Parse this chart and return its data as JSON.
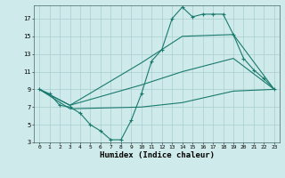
{
  "xlabel": "Humidex (Indice chaleur)",
  "bg_color": "#ceeaea",
  "grid_color": "#aacece",
  "line_color": "#1a7a6e",
  "xlim": [
    -0.5,
    23.5
  ],
  "ylim": [
    3,
    18.5
  ],
  "xticks": [
    0,
    1,
    2,
    3,
    4,
    5,
    6,
    7,
    8,
    9,
    10,
    11,
    12,
    13,
    14,
    15,
    16,
    17,
    18,
    19,
    20,
    21,
    22,
    23
  ],
  "yticks": [
    3,
    5,
    7,
    9,
    11,
    13,
    15,
    17
  ],
  "line1_x": [
    0,
    1,
    2,
    3,
    4,
    5,
    6,
    7,
    8,
    9,
    10,
    11,
    12,
    13,
    14,
    15,
    16,
    17,
    18,
    19,
    20,
    21,
    22,
    23
  ],
  "line1_y": [
    9.0,
    8.5,
    7.2,
    7.0,
    6.3,
    5.0,
    4.3,
    3.3,
    3.3,
    5.5,
    8.5,
    12.2,
    13.5,
    17.0,
    18.3,
    17.2,
    17.5,
    17.5,
    17.5,
    15.2,
    12.5,
    11.2,
    10.2,
    9.0
  ],
  "line2_x": [
    0,
    3,
    10,
    14,
    19,
    23
  ],
  "line2_y": [
    9.0,
    7.2,
    12.0,
    15.0,
    15.2,
    9.0
  ],
  "line3_x": [
    0,
    3,
    10,
    14,
    19,
    23
  ],
  "line3_y": [
    9.0,
    7.2,
    9.5,
    11.0,
    12.5,
    9.0
  ],
  "line4_x": [
    0,
    3,
    10,
    14,
    19,
    23
  ],
  "line4_y": [
    9.0,
    6.8,
    7.0,
    7.5,
    8.8,
    9.0
  ]
}
